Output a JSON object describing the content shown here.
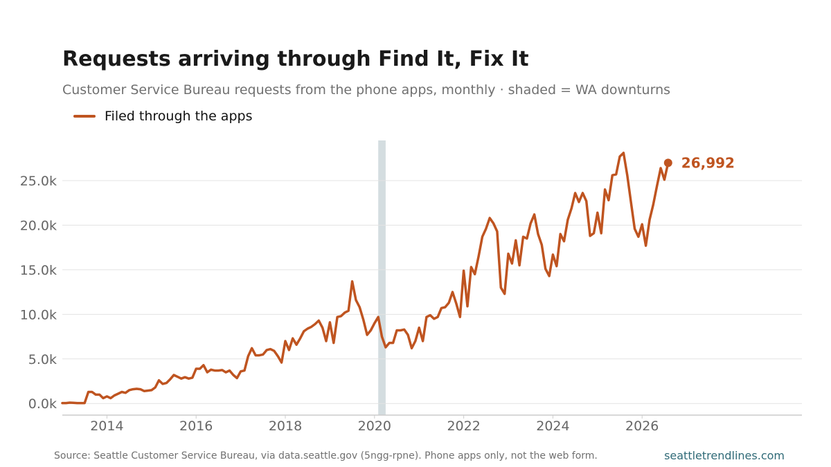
{
  "header": {
    "title": "Requests arriving through Find It, Fix It",
    "subtitle": "Customer Service Bureau requests from the phone apps, monthly · shaded = WA downturns"
  },
  "footer": {
    "source": "Source: Seattle Customer Service Bureau, via data.seattle.gov (5ngg-rpne). Phone apps only, not the web form.",
    "site": "seattletrendlines.com"
  },
  "colors": {
    "series": "#bf5420",
    "recession": "#d4dde0",
    "grid": "#e3e3e3",
    "axis": "#cccccc"
  },
  "chart_data": {
    "type": "line",
    "title": "Requests arriving through Find It, Fix It",
    "subtitle": "Customer Service Bureau requests from the phone apps, monthly · shaded = WA downturns",
    "xlabel": "",
    "ylabel": "",
    "x_ticks": [
      "2014",
      "2016",
      "2018",
      "2020",
      "2022",
      "2024",
      "2026"
    ],
    "y_ticks": [
      "0.0k",
      "5.0k",
      "10.0k",
      "15.0k",
      "20.0k",
      "25.0k"
    ],
    "xlim": [
      "2013-01",
      "2029-08"
    ],
    "ylim": [
      -1300,
      29500
    ],
    "grid": "horizontal",
    "legend_position": "top-left",
    "shaded_periods": [
      {
        "start": "2020-02",
        "end": "2020-04"
      }
    ],
    "end_label": "26,992",
    "series": [
      {
        "name": "Filed through the apps",
        "start": "2013-01",
        "frequency": "monthly",
        "values": [
          50,
          50,
          100,
          80,
          50,
          50,
          50,
          1300,
          1300,
          1000,
          1000,
          600,
          800,
          600,
          900,
          1100,
          1300,
          1200,
          1500,
          1600,
          1650,
          1600,
          1400,
          1450,
          1500,
          1800,
          2600,
          2200,
          2300,
          2700,
          3200,
          3000,
          2800,
          2950,
          2800,
          2900,
          3900,
          3900,
          4300,
          3500,
          3800,
          3700,
          3700,
          3750,
          3500,
          3700,
          3200,
          2850,
          3600,
          3700,
          5300,
          6200,
          5400,
          5400,
          5500,
          6000,
          6100,
          5900,
          5300,
          4600,
          7000,
          6000,
          7300,
          6600,
          7300,
          8100,
          8400,
          8600,
          8900,
          9300,
          8500,
          7000,
          9100,
          6800,
          9700,
          9800,
          10200,
          10400,
          13700,
          11600,
          10800,
          9400,
          7700,
          8200,
          9000,
          9700,
          7500,
          6300,
          6800,
          6800,
          8200,
          8200,
          8300,
          7700,
          6200,
          7000,
          8500,
          7000,
          9700,
          9900,
          9500,
          9700,
          10700,
          10800,
          11300,
          12500,
          11200,
          9700,
          14900,
          10900,
          15300,
          14500,
          16500,
          18700,
          19600,
          20800,
          20200,
          19300,
          13000,
          12300,
          16800,
          15700,
          18300,
          15500,
          18700,
          18500,
          20200,
          21200,
          19000,
          17800,
          15100,
          14300,
          16700,
          15400,
          19000,
          18200,
          20600,
          21900,
          23600,
          22600,
          23600,
          22700,
          18800,
          19100,
          21400,
          19100,
          24000,
          22800,
          25600,
          25700,
          27700,
          28100,
          25600,
          22600,
          19600,
          18700,
          20100,
          17700,
          20600,
          22300,
          24400,
          26400,
          25100,
          26992
        ]
      }
    ]
  }
}
